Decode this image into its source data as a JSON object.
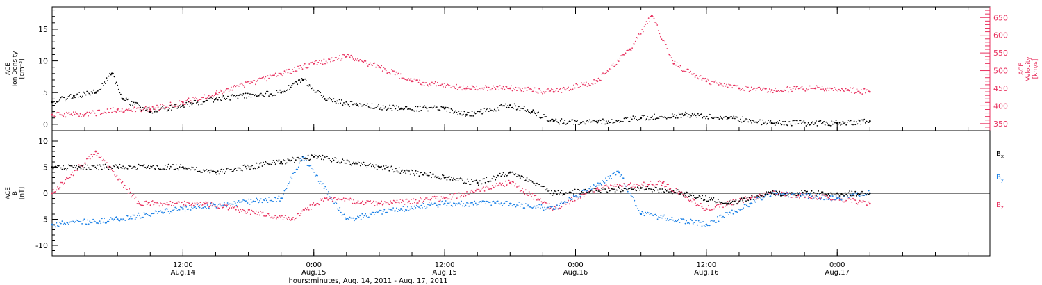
{
  "colors": {
    "black": "#000000",
    "pink": "#e8315f",
    "blue": "#1a80e6"
  },
  "chart_data": [
    {
      "type": "scatter",
      "panel": "top",
      "ylabel": [
        "ACE",
        "Ion Density",
        "[cm⁻³]"
      ],
      "y2label": [
        "ACE",
        "Velocity",
        "[km/s]"
      ],
      "ylim": [
        -1,
        18.5
      ],
      "y2lim": [
        330,
        680
      ],
      "yticks": [
        0,
        5,
        10,
        15
      ],
      "y2ticks": [
        350,
        400,
        450,
        500,
        550,
        600,
        650
      ],
      "series": [
        {
          "axis": "left",
          "color": "#000000",
          "points": [
            [
              "2011-08-14T00:00",
              3.5
            ],
            [
              "2011-08-14T02:00",
              4.5
            ],
            [
              "2011-08-14T04:00",
              5.0
            ],
            [
              "2011-08-14T05:30",
              8.0
            ],
            [
              "2011-08-14T06:30",
              4.0
            ],
            [
              "2011-08-14T09:00",
              2.0
            ],
            [
              "2011-08-14T12:00",
              3.0
            ],
            [
              "2011-08-14T15:00",
              4.0
            ],
            [
              "2011-08-14T21:00",
              5.0
            ],
            [
              "2011-08-14T23:00",
              7.0
            ],
            [
              "2011-08-15T01:00",
              4.0
            ],
            [
              "2011-08-15T04:00",
              3.0
            ],
            [
              "2011-08-15T08:00",
              2.5
            ],
            [
              "2011-08-15T12:00",
              2.5
            ],
            [
              "2011-08-15T14:00",
              1.5
            ],
            [
              "2011-08-15T18:00",
              3.0
            ],
            [
              "2011-08-15T20:00",
              2.0
            ],
            [
              "2011-08-15T22:00",
              0.5
            ],
            [
              "2011-08-16T02:00",
              0.3
            ],
            [
              "2011-08-16T06:00",
              1.0
            ],
            [
              "2011-08-16T10:00",
              1.5
            ],
            [
              "2011-08-16T14:00",
              1.0
            ],
            [
              "2011-08-16T18:00",
              0.2
            ],
            [
              "2011-08-17T00:00",
              0.2
            ],
            [
              "2011-08-17T03:00",
              0.5
            ]
          ]
        },
        {
          "axis": "right",
          "color": "#e8315f",
          "points": [
            [
              "2011-08-14T00:00",
              375
            ],
            [
              "2011-08-14T03:00",
              375
            ],
            [
              "2011-08-14T06:00",
              390
            ],
            [
              "2011-08-14T09:00",
              390
            ],
            [
              "2011-08-14T12:00",
              410
            ],
            [
              "2011-08-14T15:00",
              435
            ],
            [
              "2011-08-14T21:00",
              490
            ],
            [
              "2011-08-15T00:00",
              520
            ],
            [
              "2011-08-15T03:00",
              540
            ],
            [
              "2011-08-15T06:00",
              510
            ],
            [
              "2011-08-15T09:00",
              470
            ],
            [
              "2011-08-15T14:00",
              450
            ],
            [
              "2011-08-15T18:00",
              450
            ],
            [
              "2011-08-15T22:00",
              440
            ],
            [
              "2011-08-16T02:00",
              470
            ],
            [
              "2011-08-16T05:00",
              560
            ],
            [
              "2011-08-16T07:00",
              655
            ],
            [
              "2011-08-16T09:00",
              520
            ],
            [
              "2011-08-16T12:00",
              470
            ],
            [
              "2011-08-16T15:00",
              450
            ],
            [
              "2011-08-16T18:00",
              445
            ],
            [
              "2011-08-16T22:00",
              450
            ],
            [
              "2011-08-17T01:00",
              445
            ],
            [
              "2011-08-17T03:00",
              440
            ]
          ]
        }
      ]
    },
    {
      "type": "scatter",
      "panel": "bottom",
      "ylabel": [
        "ACE",
        "B",
        "[nT]"
      ],
      "ylim": [
        -12,
        12
      ],
      "yticks": [
        -10,
        -5,
        0,
        5,
        10
      ],
      "zero_line": true,
      "legend": [
        {
          "name": "Bx",
          "color": "#000000"
        },
        {
          "name": "By",
          "color": "#1a80e6"
        },
        {
          "name": "Bz",
          "color": "#e8315f"
        }
      ],
      "series": [
        {
          "name": "Bx",
          "color": "#000000",
          "points": [
            [
              "2011-08-14T00:00",
              5
            ],
            [
              "2011-08-14T06:00",
              5
            ],
            [
              "2011-08-14T12:00",
              5
            ],
            [
              "2011-08-14T15:00",
              4
            ],
            [
              "2011-08-14T21:00",
              6
            ],
            [
              "2011-08-15T00:00",
              7
            ],
            [
              "2011-08-15T06:00",
              5
            ],
            [
              "2011-08-15T12:00",
              3
            ],
            [
              "2011-08-15T15:00",
              2
            ],
            [
              "2011-08-15T18:00",
              4
            ],
            [
              "2011-08-15T22:00",
              0
            ],
            [
              "2011-08-16T06:00",
              1
            ],
            [
              "2011-08-16T10:00",
              0
            ],
            [
              "2011-08-16T14:00",
              -2
            ],
            [
              "2011-08-16T18:00",
              0
            ],
            [
              "2011-08-17T00:00",
              0
            ],
            [
              "2011-08-17T03:00",
              0
            ]
          ]
        },
        {
          "name": "By",
          "color": "#1a80e6",
          "points": [
            [
              "2011-08-14T00:00",
              -6
            ],
            [
              "2011-08-14T06:00",
              -5
            ],
            [
              "2011-08-14T12:00",
              -3
            ],
            [
              "2011-08-14T21:00",
              -1
            ],
            [
              "2011-08-14T23:00",
              7
            ],
            [
              "2011-08-15T03:00",
              -5
            ],
            [
              "2011-08-15T08:00",
              -3
            ],
            [
              "2011-08-15T12:00",
              -2
            ],
            [
              "2011-08-15T18:00",
              -2
            ],
            [
              "2011-08-15T22:00",
              -3
            ],
            [
              "2011-08-16T04:00",
              4
            ],
            [
              "2011-08-16T06:00",
              -4
            ],
            [
              "2011-08-16T12:00",
              -6
            ],
            [
              "2011-08-16T16:00",
              -2
            ],
            [
              "2011-08-16T18:00",
              0
            ],
            [
              "2011-08-17T00:00",
              -1
            ],
            [
              "2011-08-17T03:00",
              0
            ]
          ]
        },
        {
          "name": "Bz",
          "color": "#e8315f",
          "points": [
            [
              "2011-08-14T00:00",
              0
            ],
            [
              "2011-08-14T04:00",
              8
            ],
            [
              "2011-08-14T08:00",
              -2
            ],
            [
              "2011-08-14T14:00",
              -2
            ],
            [
              "2011-08-14T22:00",
              -5
            ],
            [
              "2011-08-15T01:00",
              -1
            ],
            [
              "2011-08-15T06:00",
              -2
            ],
            [
              "2011-08-15T12:00",
              -1
            ],
            [
              "2011-08-15T18:00",
              2
            ],
            [
              "2011-08-15T22:00",
              -3
            ],
            [
              "2011-08-16T02:00",
              1
            ],
            [
              "2011-08-16T08:00",
              2
            ],
            [
              "2011-08-16T12:00",
              -3
            ],
            [
              "2011-08-16T16:00",
              -1
            ],
            [
              "2011-08-16T18:00",
              0
            ],
            [
              "2011-08-17T00:00",
              -1
            ],
            [
              "2011-08-17T03:00",
              -2
            ]
          ]
        }
      ]
    }
  ],
  "x_axis": {
    "xlim": [
      "2011-08-14T00:00",
      "2011-08-17T14:00"
    ],
    "ticks": [
      {
        "t": "2011-08-14T12:00",
        "time": "12:00",
        "date": "Aug.14"
      },
      {
        "t": "2011-08-15T00:00",
        "time": "0:00",
        "date": "Aug.15"
      },
      {
        "t": "2011-08-15T12:00",
        "time": "12:00",
        "date": "Aug.15"
      },
      {
        "t": "2011-08-16T00:00",
        "time": "0:00",
        "date": "Aug.16"
      },
      {
        "t": "2011-08-16T12:00",
        "time": "12:00",
        "date": "Aug.16"
      },
      {
        "t": "2011-08-17T00:00",
        "time": "0:00",
        "date": "Aug.17"
      }
    ],
    "xlabel": "hours:minutes, Aug. 14, 2011 - Aug. 17, 2011"
  }
}
